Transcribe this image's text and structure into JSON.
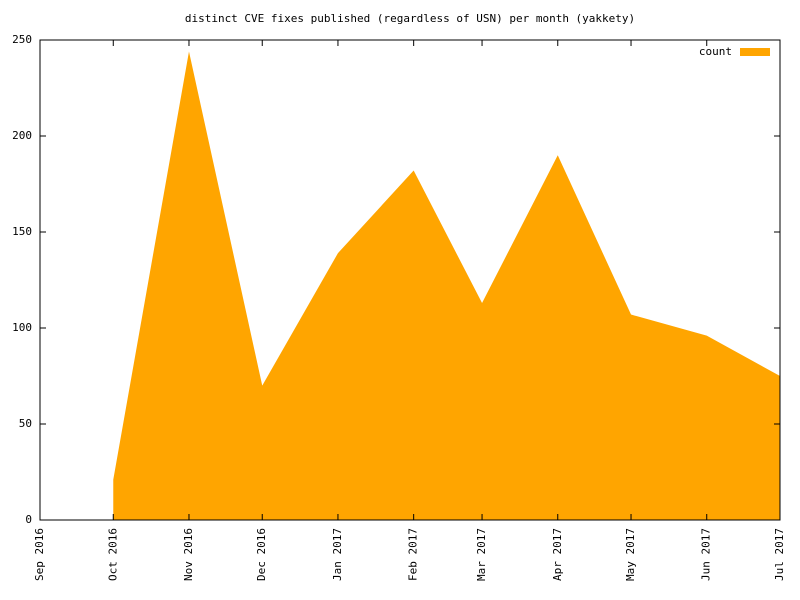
{
  "chart_data": {
    "type": "area",
    "title": "distinct CVE fixes published (regardless of USN) per month (yakkety)",
    "x": [
      "2016-10",
      "2016-11",
      "2016-12",
      "2017-01",
      "2017-02",
      "2017-03",
      "2017-04",
      "2017-05",
      "2017-06",
      "2017-07"
    ],
    "series": [
      {
        "name": "count",
        "color": "#ffa500",
        "values": [
          21,
          244,
          70,
          139,
          182,
          113,
          190,
          107,
          96,
          75
        ]
      }
    ],
    "xlim": [
      "2016-09",
      "2017-07"
    ],
    "xticks": [
      {
        "value": "2016-09",
        "label": "Sep 2016"
      },
      {
        "value": "2016-10",
        "label": "Oct 2016"
      },
      {
        "value": "2016-11",
        "label": "Nov 2016"
      },
      {
        "value": "2016-12",
        "label": "Dec 2016"
      },
      {
        "value": "2017-01",
        "label": "Jan 2017"
      },
      {
        "value": "2017-02",
        "label": "Feb 2017"
      },
      {
        "value": "2017-03",
        "label": "Mar 2017"
      },
      {
        "value": "2017-04",
        "label": "Apr 2017"
      },
      {
        "value": "2017-05",
        "label": "May 2017"
      },
      {
        "value": "2017-06",
        "label": "Jun 2017"
      },
      {
        "value": "2017-07",
        "label": "Jul 2017"
      }
    ],
    "ylim": [
      0,
      250
    ],
    "yticks": [
      0,
      50,
      100,
      150,
      200,
      250
    ],
    "legend": "top-right"
  }
}
